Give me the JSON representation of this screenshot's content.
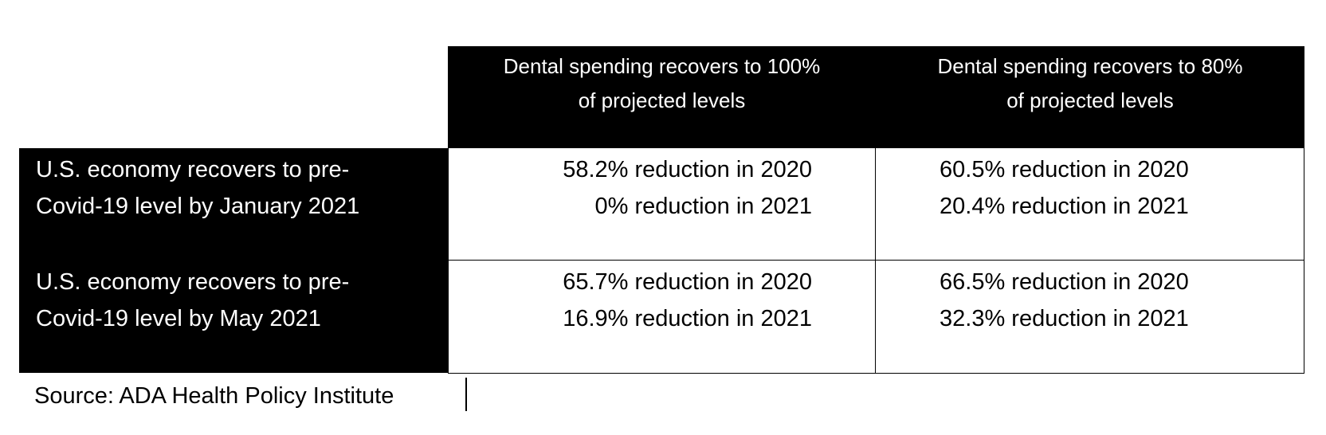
{
  "table": {
    "column_headers": [
      {
        "line1": "Dental spending recovers to 100%",
        "line2": "of projected levels"
      },
      {
        "line1": "Dental spending recovers to 80%",
        "line2": "of projected levels"
      }
    ],
    "rows": [
      {
        "label_line1": "U.S. economy recovers to pre-",
        "label_line2": "Covid-19 level by January 2021",
        "cells": [
          {
            "line1": "58.2% reduction in 2020",
            "line2": "0% reduction in 2021"
          },
          {
            "line1": "60.5% reduction in 2020",
            "line2": "20.4% reduction in 2021"
          }
        ]
      },
      {
        "label_line1": "U.S. economy recovers to pre-",
        "label_line2": "Covid-19 level by May 2021",
        "cells": [
          {
            "line1": "65.7% reduction in 2020",
            "line2": "16.9% reduction in 2021"
          },
          {
            "line1": "66.5% reduction in 2020",
            "line2": "32.3% reduction in 2021"
          }
        ]
      }
    ]
  },
  "source": "Source: ADA Health Policy Institute"
}
